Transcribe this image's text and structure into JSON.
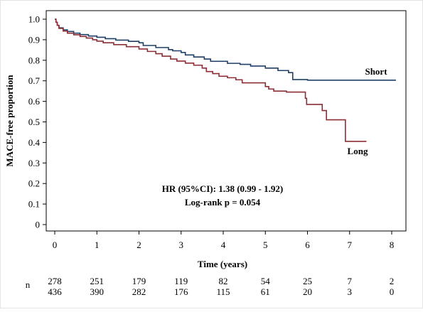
{
  "chart_data": {
    "type": "line",
    "style": "step",
    "ylabel": "MACE-free proportion",
    "xlabel": "Time (years)",
    "xlim": [
      0,
      8
    ],
    "ylim": [
      0,
      1
    ],
    "x_ticks": [
      "0",
      "1",
      "2",
      "3",
      "4",
      "5",
      "6",
      "7",
      "8"
    ],
    "y_ticks": [
      "0",
      "0.1",
      "0.2",
      "0.3",
      "0.4",
      "0.5",
      "0.6",
      "0.7",
      "0.8",
      "0.9",
      "1.0"
    ],
    "grid": false,
    "annotations": [
      "HR (95%CI): 1.38 (0.99 - 1.92)",
      "Log-rank p = 0.054"
    ],
    "series": [
      {
        "name": "Short",
        "color": "#1f3f66",
        "points": [
          [
            0,
            1.0
          ],
          [
            0.03,
            0.985
          ],
          [
            0.06,
            0.97
          ],
          [
            0.1,
            0.958
          ],
          [
            0.2,
            0.948
          ],
          [
            0.3,
            0.94
          ],
          [
            0.45,
            0.932
          ],
          [
            0.6,
            0.925
          ],
          [
            0.8,
            0.918
          ],
          [
            1.0,
            0.912
          ],
          [
            1.2,
            0.905
          ],
          [
            1.45,
            0.898
          ],
          [
            1.75,
            0.892
          ],
          [
            2.0,
            0.885
          ],
          [
            2.1,
            0.872
          ],
          [
            2.4,
            0.862
          ],
          [
            2.7,
            0.852
          ],
          [
            2.8,
            0.846
          ],
          [
            3.0,
            0.838
          ],
          [
            3.1,
            0.826
          ],
          [
            3.3,
            0.816
          ],
          [
            3.55,
            0.806
          ],
          [
            3.7,
            0.795
          ],
          [
            4.1,
            0.785
          ],
          [
            4.4,
            0.78
          ],
          [
            4.65,
            0.772
          ],
          [
            5.0,
            0.762
          ],
          [
            5.3,
            0.75
          ],
          [
            5.55,
            0.74
          ],
          [
            5.65,
            0.706
          ],
          [
            6.0,
            0.703
          ],
          [
            7.0,
            0.703
          ],
          [
            8.1,
            0.703
          ]
        ]
      },
      {
        "name": "Long",
        "color": "#8b2e35",
        "points": [
          [
            0,
            1.0
          ],
          [
            0.03,
            0.985
          ],
          [
            0.06,
            0.97
          ],
          [
            0.1,
            0.955
          ],
          [
            0.2,
            0.942
          ],
          [
            0.3,
            0.932
          ],
          [
            0.45,
            0.924
          ],
          [
            0.6,
            0.916
          ],
          [
            0.75,
            0.908
          ],
          [
            0.9,
            0.9
          ],
          [
            1.0,
            0.893
          ],
          [
            1.15,
            0.885
          ],
          [
            1.4,
            0.876
          ],
          [
            1.7,
            0.866
          ],
          [
            2.0,
            0.855
          ],
          [
            2.2,
            0.843
          ],
          [
            2.4,
            0.832
          ],
          [
            2.55,
            0.82
          ],
          [
            2.75,
            0.806
          ],
          [
            2.9,
            0.796
          ],
          [
            3.1,
            0.786
          ],
          [
            3.3,
            0.776
          ],
          [
            3.5,
            0.762
          ],
          [
            3.6,
            0.745
          ],
          [
            3.75,
            0.735
          ],
          [
            3.9,
            0.722
          ],
          [
            4.1,
            0.715
          ],
          [
            4.3,
            0.705
          ],
          [
            4.45,
            0.69
          ],
          [
            5.0,
            0.68
          ],
          [
            5.0,
            0.672
          ],
          [
            5.08,
            0.66
          ],
          [
            5.2,
            0.65
          ],
          [
            5.5,
            0.645
          ],
          [
            5.85,
            0.645
          ],
          [
            5.95,
            0.615
          ],
          [
            5.98,
            0.585
          ],
          [
            6.25,
            0.585
          ],
          [
            6.35,
            0.555
          ],
          [
            6.45,
            0.51
          ],
          [
            6.9,
            0.51
          ],
          [
            6.9,
            0.405
          ],
          [
            7.4,
            0.405
          ]
        ]
      }
    ],
    "risk_table": {
      "label": "n",
      "rows": [
        [
          "278",
          "251",
          "179",
          "119",
          "82",
          "54",
          "25",
          "7",
          "2"
        ],
        [
          "436",
          "390",
          "282",
          "176",
          "115",
          "61",
          "20",
          "3",
          "0"
        ]
      ]
    }
  }
}
